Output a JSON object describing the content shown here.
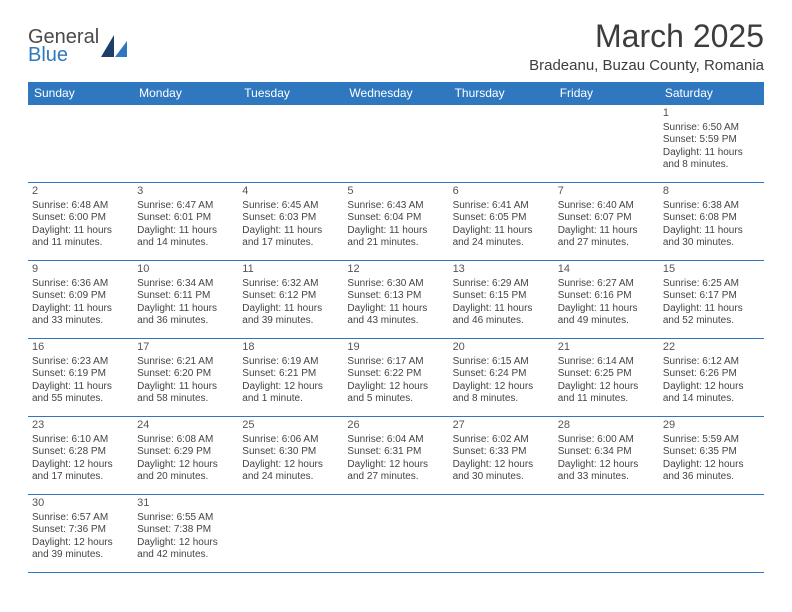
{
  "brand": {
    "part1": "General",
    "part2": "Blue"
  },
  "title": "March 2025",
  "location": "Bradeanu, Buzau County, Romania",
  "colors": {
    "accent": "#2f78bf",
    "text": "#3d3d3d",
    "cellText": "#444444",
    "bg": "#ffffff"
  },
  "dayHeaders": [
    "Sunday",
    "Monday",
    "Tuesday",
    "Wednesday",
    "Thursday",
    "Friday",
    "Saturday"
  ],
  "weeks": [
    [
      null,
      null,
      null,
      null,
      null,
      null,
      {
        "n": "1",
        "sr": "Sunrise: 6:50 AM",
        "ss": "Sunset: 5:59 PM",
        "d1": "Daylight: 11 hours",
        "d2": "and 8 minutes."
      }
    ],
    [
      {
        "n": "2",
        "sr": "Sunrise: 6:48 AM",
        "ss": "Sunset: 6:00 PM",
        "d1": "Daylight: 11 hours",
        "d2": "and 11 minutes."
      },
      {
        "n": "3",
        "sr": "Sunrise: 6:47 AM",
        "ss": "Sunset: 6:01 PM",
        "d1": "Daylight: 11 hours",
        "d2": "and 14 minutes."
      },
      {
        "n": "4",
        "sr": "Sunrise: 6:45 AM",
        "ss": "Sunset: 6:03 PM",
        "d1": "Daylight: 11 hours",
        "d2": "and 17 minutes."
      },
      {
        "n": "5",
        "sr": "Sunrise: 6:43 AM",
        "ss": "Sunset: 6:04 PM",
        "d1": "Daylight: 11 hours",
        "d2": "and 21 minutes."
      },
      {
        "n": "6",
        "sr": "Sunrise: 6:41 AM",
        "ss": "Sunset: 6:05 PM",
        "d1": "Daylight: 11 hours",
        "d2": "and 24 minutes."
      },
      {
        "n": "7",
        "sr": "Sunrise: 6:40 AM",
        "ss": "Sunset: 6:07 PM",
        "d1": "Daylight: 11 hours",
        "d2": "and 27 minutes."
      },
      {
        "n": "8",
        "sr": "Sunrise: 6:38 AM",
        "ss": "Sunset: 6:08 PM",
        "d1": "Daylight: 11 hours",
        "d2": "and 30 minutes."
      }
    ],
    [
      {
        "n": "9",
        "sr": "Sunrise: 6:36 AM",
        "ss": "Sunset: 6:09 PM",
        "d1": "Daylight: 11 hours",
        "d2": "and 33 minutes."
      },
      {
        "n": "10",
        "sr": "Sunrise: 6:34 AM",
        "ss": "Sunset: 6:11 PM",
        "d1": "Daylight: 11 hours",
        "d2": "and 36 minutes."
      },
      {
        "n": "11",
        "sr": "Sunrise: 6:32 AM",
        "ss": "Sunset: 6:12 PM",
        "d1": "Daylight: 11 hours",
        "d2": "and 39 minutes."
      },
      {
        "n": "12",
        "sr": "Sunrise: 6:30 AM",
        "ss": "Sunset: 6:13 PM",
        "d1": "Daylight: 11 hours",
        "d2": "and 43 minutes."
      },
      {
        "n": "13",
        "sr": "Sunrise: 6:29 AM",
        "ss": "Sunset: 6:15 PM",
        "d1": "Daylight: 11 hours",
        "d2": "and 46 minutes."
      },
      {
        "n": "14",
        "sr": "Sunrise: 6:27 AM",
        "ss": "Sunset: 6:16 PM",
        "d1": "Daylight: 11 hours",
        "d2": "and 49 minutes."
      },
      {
        "n": "15",
        "sr": "Sunrise: 6:25 AM",
        "ss": "Sunset: 6:17 PM",
        "d1": "Daylight: 11 hours",
        "d2": "and 52 minutes."
      }
    ],
    [
      {
        "n": "16",
        "sr": "Sunrise: 6:23 AM",
        "ss": "Sunset: 6:19 PM",
        "d1": "Daylight: 11 hours",
        "d2": "and 55 minutes."
      },
      {
        "n": "17",
        "sr": "Sunrise: 6:21 AM",
        "ss": "Sunset: 6:20 PM",
        "d1": "Daylight: 11 hours",
        "d2": "and 58 minutes."
      },
      {
        "n": "18",
        "sr": "Sunrise: 6:19 AM",
        "ss": "Sunset: 6:21 PM",
        "d1": "Daylight: 12 hours",
        "d2": "and 1 minute."
      },
      {
        "n": "19",
        "sr": "Sunrise: 6:17 AM",
        "ss": "Sunset: 6:22 PM",
        "d1": "Daylight: 12 hours",
        "d2": "and 5 minutes."
      },
      {
        "n": "20",
        "sr": "Sunrise: 6:15 AM",
        "ss": "Sunset: 6:24 PM",
        "d1": "Daylight: 12 hours",
        "d2": "and 8 minutes."
      },
      {
        "n": "21",
        "sr": "Sunrise: 6:14 AM",
        "ss": "Sunset: 6:25 PM",
        "d1": "Daylight: 12 hours",
        "d2": "and 11 minutes."
      },
      {
        "n": "22",
        "sr": "Sunrise: 6:12 AM",
        "ss": "Sunset: 6:26 PM",
        "d1": "Daylight: 12 hours",
        "d2": "and 14 minutes."
      }
    ],
    [
      {
        "n": "23",
        "sr": "Sunrise: 6:10 AM",
        "ss": "Sunset: 6:28 PM",
        "d1": "Daylight: 12 hours",
        "d2": "and 17 minutes."
      },
      {
        "n": "24",
        "sr": "Sunrise: 6:08 AM",
        "ss": "Sunset: 6:29 PM",
        "d1": "Daylight: 12 hours",
        "d2": "and 20 minutes."
      },
      {
        "n": "25",
        "sr": "Sunrise: 6:06 AM",
        "ss": "Sunset: 6:30 PM",
        "d1": "Daylight: 12 hours",
        "d2": "and 24 minutes."
      },
      {
        "n": "26",
        "sr": "Sunrise: 6:04 AM",
        "ss": "Sunset: 6:31 PM",
        "d1": "Daylight: 12 hours",
        "d2": "and 27 minutes."
      },
      {
        "n": "27",
        "sr": "Sunrise: 6:02 AM",
        "ss": "Sunset: 6:33 PM",
        "d1": "Daylight: 12 hours",
        "d2": "and 30 minutes."
      },
      {
        "n": "28",
        "sr": "Sunrise: 6:00 AM",
        "ss": "Sunset: 6:34 PM",
        "d1": "Daylight: 12 hours",
        "d2": "and 33 minutes."
      },
      {
        "n": "29",
        "sr": "Sunrise: 5:59 AM",
        "ss": "Sunset: 6:35 PM",
        "d1": "Daylight: 12 hours",
        "d2": "and 36 minutes."
      }
    ],
    [
      {
        "n": "30",
        "sr": "Sunrise: 6:57 AM",
        "ss": "Sunset: 7:36 PM",
        "d1": "Daylight: 12 hours",
        "d2": "and 39 minutes."
      },
      {
        "n": "31",
        "sr": "Sunrise: 6:55 AM",
        "ss": "Sunset: 7:38 PM",
        "d1": "Daylight: 12 hours",
        "d2": "and 42 minutes."
      },
      null,
      null,
      null,
      null,
      null
    ]
  ]
}
